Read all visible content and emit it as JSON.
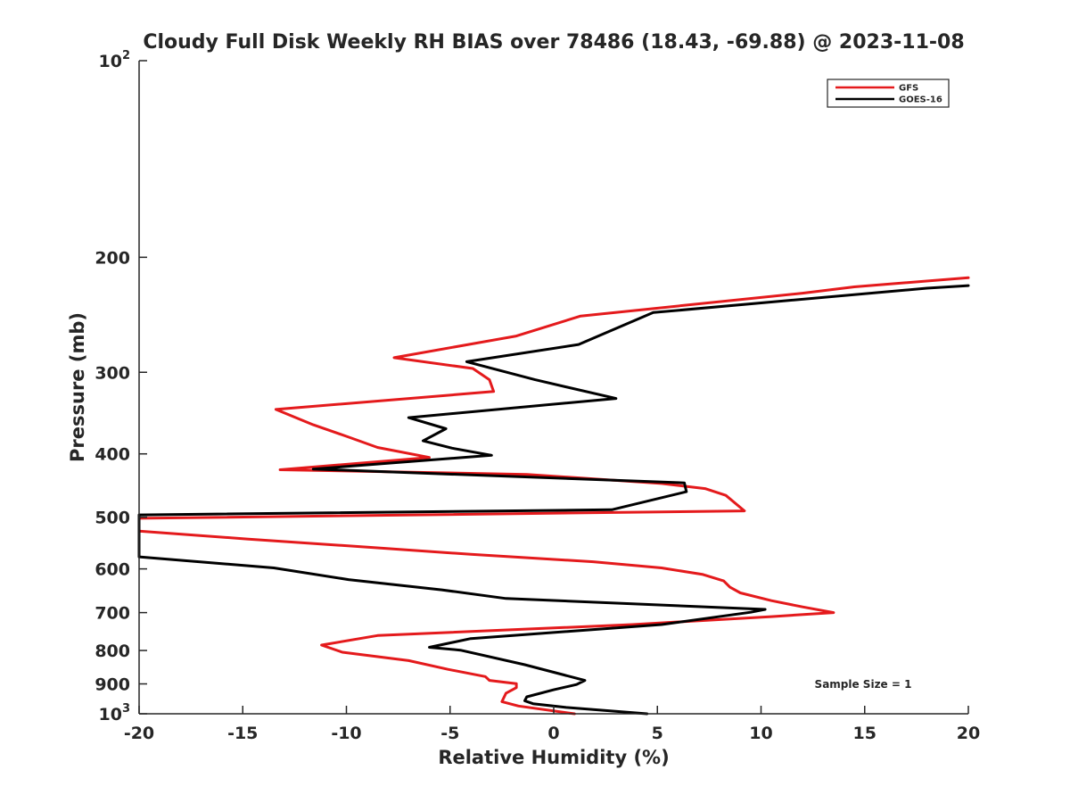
{
  "chart_data": {
    "type": "line",
    "title": "Cloudy Full Disk Weekly RH BIAS over 78486 (18.43, -69.88) @ 2023-11-08",
    "xlabel": "Relative Humidity (%)",
    "ylabel": "Pressure (mb)",
    "xlim": [
      -20,
      20
    ],
    "ylim": [
      100,
      1000
    ],
    "y_scale": "log",
    "y_reversed": true,
    "x_ticks": [
      -20,
      -15,
      -10,
      -5,
      0,
      5,
      10,
      15,
      20
    ],
    "x_tick_labels": [
      "-20",
      "-15",
      "-10",
      "-5",
      "0",
      "5",
      "10",
      "15",
      "20"
    ],
    "y_ticks": [
      100,
      200,
      300,
      400,
      500,
      600,
      700,
      800,
      900,
      1000
    ],
    "y_tick_labels": [
      {
        "base": "10",
        "exp": "2"
      },
      {
        "base": "200",
        "exp": ""
      },
      {
        "base": "300",
        "exp": ""
      },
      {
        "base": "400",
        "exp": ""
      },
      {
        "base": "500",
        "exp": ""
      },
      {
        "base": "600",
        "exp": ""
      },
      {
        "base": "700",
        "exp": ""
      },
      {
        "base": "800",
        "exp": ""
      },
      {
        "base": "900",
        "exp": ""
      },
      {
        "base": "10",
        "exp": "3"
      }
    ],
    "grid": false,
    "legend_position": "top-right",
    "annotation": "Sample Size = 1",
    "series": [
      {
        "name": "GFS",
        "color": "#e41a1c",
        "points": [
          [
            20.0,
            215
          ],
          [
            14.5,
            222
          ],
          [
            12.0,
            227
          ],
          [
            1.3,
            246
          ],
          [
            -1.8,
            264
          ],
          [
            -7.7,
            285
          ],
          [
            -3.9,
            296
          ],
          [
            -3.1,
            308
          ],
          [
            -2.9,
            321
          ],
          [
            -13.4,
            342
          ],
          [
            -11.6,
            361
          ],
          [
            -10.0,
            376
          ],
          [
            -8.5,
            391
          ],
          [
            -6.0,
            405
          ],
          [
            -13.2,
            423
          ],
          [
            -1.3,
            430
          ],
          [
            5.2,
            444
          ],
          [
            7.3,
            452
          ],
          [
            8.3,
            463
          ],
          [
            9.2,
            489
          ],
          [
            -20.0,
            502
          ],
          [
            -20.0,
            525
          ],
          [
            -14.8,
            540
          ],
          [
            -8.9,
            556
          ],
          [
            -4.0,
            570
          ],
          [
            1.9,
            585
          ],
          [
            5.2,
            598
          ],
          [
            7.2,
            612
          ],
          [
            8.2,
            626
          ],
          [
            8.5,
            640
          ],
          [
            9.0,
            653
          ],
          [
            10.5,
            671
          ],
          [
            12.0,
            686
          ],
          [
            13.5,
            700
          ],
          [
            10.5,
            710
          ],
          [
            3.8,
            730
          ],
          [
            -8.5,
            759
          ],
          [
            -11.2,
            785
          ],
          [
            -10.2,
            805
          ],
          [
            -7.0,
            829
          ],
          [
            -5.1,
            855
          ],
          [
            -3.3,
            877
          ],
          [
            -3.1,
            889
          ],
          [
            -1.8,
            899
          ],
          [
            -1.8,
            912
          ],
          [
            -2.3,
            930
          ],
          [
            -2.5,
            958
          ],
          [
            -1.7,
            973
          ],
          [
            1.0,
            1000
          ]
        ]
      },
      {
        "name": "GOES-16",
        "color": "#000000",
        "points": [
          [
            20.0,
            221
          ],
          [
            18.0,
            223
          ],
          [
            4.8,
            243
          ],
          [
            1.2,
            272
          ],
          [
            -4.2,
            289
          ],
          [
            -0.9,
            308
          ],
          [
            3.0,
            329
          ],
          [
            -7.0,
            352
          ],
          [
            -5.2,
            366
          ],
          [
            -6.3,
            382
          ],
          [
            -4.9,
            392
          ],
          [
            -3.0,
            402
          ],
          [
            -11.6,
            422
          ],
          [
            6.3,
            443
          ],
          [
            6.4,
            457
          ],
          [
            2.8,
            487
          ],
          [
            -20.0,
            496
          ],
          [
            -20.0,
            575
          ],
          [
            -13.5,
            598
          ],
          [
            -9.9,
            623
          ],
          [
            -5.4,
            646
          ],
          [
            -2.3,
            666
          ],
          [
            10.2,
            692
          ],
          [
            9.5,
            699
          ],
          [
            5.2,
            730
          ],
          [
            -4.0,
            767
          ],
          [
            -6.0,
            791
          ],
          [
            -4.5,
            799
          ],
          [
            -1.4,
            841
          ],
          [
            0.5,
            872
          ],
          [
            1.5,
            889
          ],
          [
            1.1,
            902
          ],
          [
            0.0,
            919
          ],
          [
            -1.3,
            942
          ],
          [
            -1.4,
            955
          ],
          [
            -1.0,
            965
          ],
          [
            0.6,
            978
          ],
          [
            4.5,
            1000
          ]
        ]
      }
    ]
  }
}
